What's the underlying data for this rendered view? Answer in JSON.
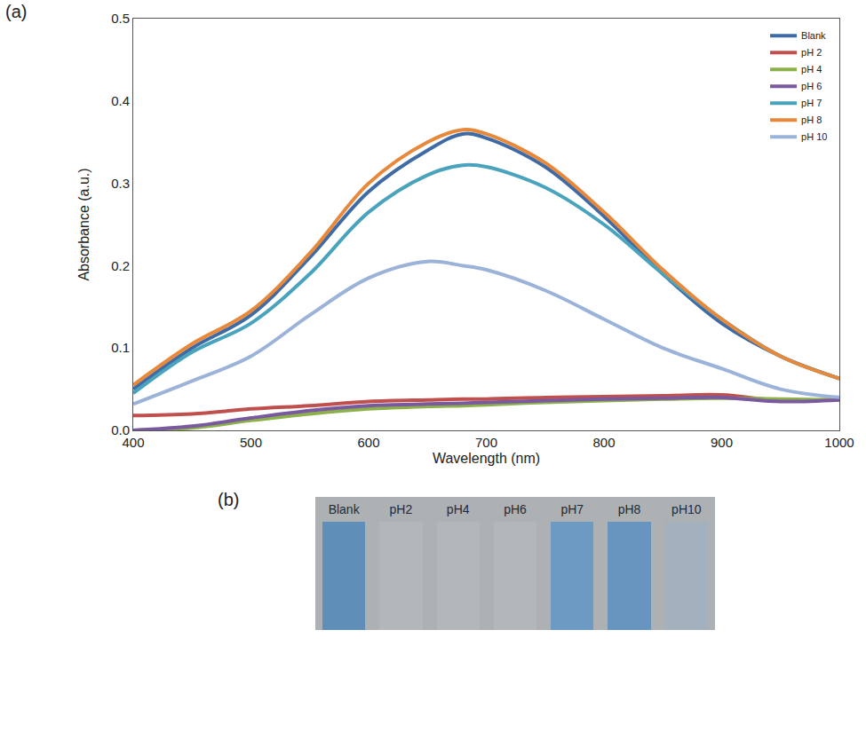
{
  "chart_data": {
    "type": "line",
    "label": "(a)",
    "x_label": "Wavelength (nm)",
    "y_label": "Absorbance (a.u.)",
    "x": [
      400,
      450,
      500,
      550,
      600,
      650,
      680,
      700,
      750,
      800,
      850,
      900,
      950,
      1000
    ],
    "series": [
      {
        "name": "Blank",
        "color": "#3e6ba6",
        "values": [
          0.05,
          0.1,
          0.14,
          0.21,
          0.29,
          0.34,
          0.36,
          0.355,
          0.32,
          0.26,
          0.19,
          0.13,
          0.09,
          0.063
        ]
      },
      {
        "name": "pH 2",
        "color": "#c0504d",
        "values": [
          0.018,
          0.02,
          0.026,
          0.03,
          0.035,
          0.037,
          0.038,
          0.038,
          0.04,
          0.041,
          0.042,
          0.043,
          0.036,
          0.038
        ]
      },
      {
        "name": "pH 4",
        "color": "#8db14a",
        "values": [
          0.0,
          0.003,
          0.012,
          0.02,
          0.026,
          0.029,
          0.03,
          0.031,
          0.034,
          0.036,
          0.038,
          0.039,
          0.038,
          0.037
        ]
      },
      {
        "name": "pH 6",
        "color": "#7a5a9e",
        "values": [
          0.0,
          0.005,
          0.015,
          0.024,
          0.03,
          0.032,
          0.033,
          0.034,
          0.036,
          0.038,
          0.039,
          0.04,
          0.035,
          0.037
        ]
      },
      {
        "name": "pH 7",
        "color": "#4aa3bd",
        "values": [
          0.045,
          0.095,
          0.13,
          0.19,
          0.265,
          0.31,
          0.322,
          0.32,
          0.295,
          0.25,
          0.19,
          0.135,
          0.09,
          0.063
        ]
      },
      {
        "name": "pH 8",
        "color": "#e8883a",
        "values": [
          0.055,
          0.105,
          0.145,
          0.215,
          0.3,
          0.35,
          0.365,
          0.36,
          0.325,
          0.265,
          0.195,
          0.135,
          0.09,
          0.063
        ]
      },
      {
        "name": "pH 10",
        "color": "#9bb3d8",
        "values": [
          0.032,
          0.06,
          0.09,
          0.14,
          0.185,
          0.205,
          0.2,
          0.195,
          0.17,
          0.135,
          0.1,
          0.075,
          0.05,
          0.04
        ]
      }
    ],
    "xlim": [
      400,
      1000
    ],
    "xticks": [
      400,
      500,
      600,
      700,
      800,
      900,
      1000
    ],
    "ylim": [
      0,
      0.5
    ],
    "yticks": [
      {
        "value": 0,
        "label": "0.0"
      },
      0.1,
      0.2,
      0.3,
      0.4,
      0.5
    ],
    "grid": false,
    "legend": "upper right"
  },
  "photo": {
    "label": "(b)",
    "cuvettes": [
      "Blank",
      "pH2",
      "pH4",
      "pH6",
      "pH7",
      "pH8",
      "pH10"
    ],
    "colors": [
      "#5f8fb8",
      "#b4b7b9",
      "#b4b7b9",
      "#b4b7b9",
      "#6c9ac2",
      "#6795bf",
      "#a3b0bd"
    ]
  }
}
